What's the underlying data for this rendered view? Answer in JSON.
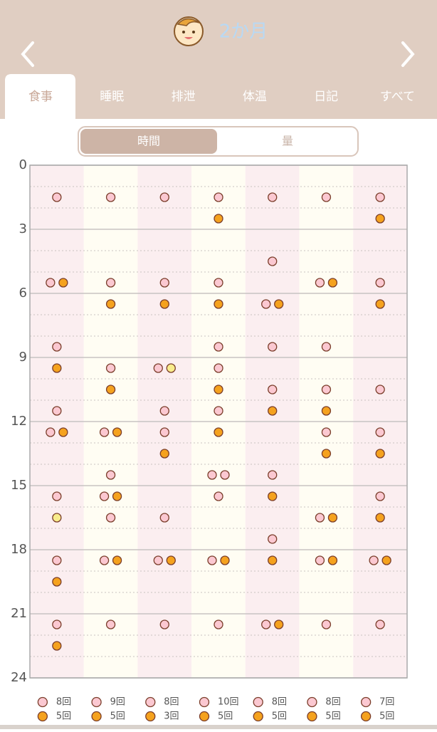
{
  "header": {
    "title": "2か月"
  },
  "tabs": [
    "食事",
    "睡眠",
    "排泄",
    "体温",
    "日記",
    "すべて"
  ],
  "toggle": [
    "時間",
    "量"
  ],
  "chart_data": {
    "type": "scatter",
    "ylim": [
      0,
      24
    ],
    "yticks": [
      0,
      3,
      6,
      9,
      12,
      15,
      18,
      21,
      24
    ],
    "grid": true,
    "series": [
      {
        "color": "#fbc8d1",
        "values": [
          [
            1.5,
            5.5,
            8.5,
            11.5,
            12.5,
            15.5,
            18.5,
            21.5
          ],
          [
            1.5,
            5.5,
            9.5,
            12.5,
            14.5,
            15.5,
            16.5,
            18.5,
            21.5
          ],
          [
            1.5,
            5.5,
            9.5,
            11.5,
            12.5,
            16.5,
            18.5,
            21.5
          ],
          [
            1.5,
            5.5,
            8.5,
            9.5,
            11.5,
            14.5,
            14.5,
            15.5,
            18.5,
            21.5
          ],
          [
            1.5,
            4.5,
            6.5,
            8.5,
            10.5,
            14.5,
            17.5,
            21.5
          ],
          [
            1.5,
            5.5,
            8.5,
            10.5,
            12.5,
            16.5,
            18.5,
            21.5
          ],
          [
            1.5,
            5.5,
            10.5,
            12.5,
            15.5,
            18.5,
            21.5
          ]
        ],
        "count_labels": [
          "8回",
          "9回",
          "8回",
          "10回",
          "8回",
          "8回",
          "7回"
        ]
      },
      {
        "color": "#f5a21e",
        "values": [
          [
            5.5,
            9.5,
            12.5,
            19.5,
            22.5
          ],
          [
            6.5,
            10.5,
            12.5,
            15.5,
            18.5
          ],
          [
            6.5,
            13.5,
            18.5
          ],
          [
            2.5,
            6.5,
            10.5,
            12.5,
            18.5
          ],
          [
            6.5,
            11.5,
            15.5,
            18.5,
            21.5
          ],
          [
            5.5,
            11.5,
            13.5,
            16.5,
            18.5
          ],
          [
            2.5,
            6.5,
            13.5,
            16.5,
            18.5
          ]
        ],
        "count_labels": [
          "5回",
          "5回",
          "3回",
          "5回",
          "5回",
          "5回",
          "5回"
        ]
      },
      {
        "color": "#f8ec8c",
        "values": [
          [
            16.5
          ],
          [],
          [
            9.5
          ],
          [],
          [],
          [],
          []
        ]
      }
    ]
  }
}
